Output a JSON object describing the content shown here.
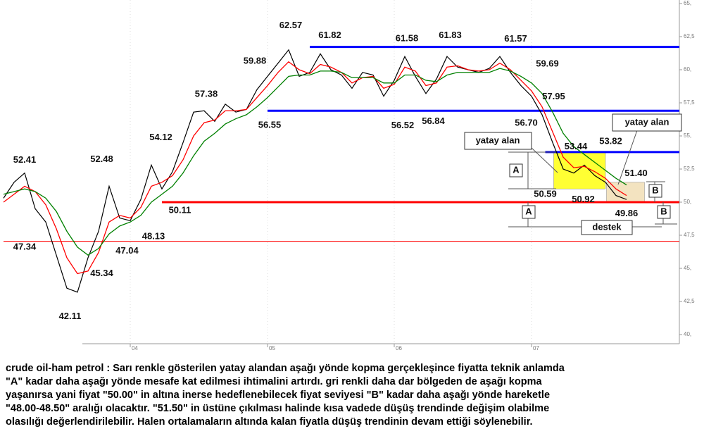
{
  "chart_data": {
    "type": "line",
    "categories": [
      null,
      null,
      null,
      null,
      null,
      null,
      null,
      null,
      null,
      null,
      null,
      null,
      "04",
      null,
      null,
      null,
      null,
      null,
      null,
      null,
      null,
      null,
      null,
      null,
      null,
      "05",
      null,
      null,
      null,
      null,
      null,
      null,
      null,
      null,
      null,
      null,
      null,
      "06",
      null,
      null,
      null,
      null,
      null,
      null,
      null,
      null,
      null,
      null,
      null,
      null,
      "07",
      null,
      null,
      null,
      null,
      null,
      null,
      null,
      null,
      null
    ],
    "series": [
      {
        "color": "#000000",
        "values": [
          50.3,
          51.5,
          52.2,
          49.5,
          48.5,
          46.0,
          43.5,
          43.2,
          45.8,
          47.8,
          51.2,
          48.8,
          48.6,
          50.2,
          52.8,
          51.0,
          52.3,
          54.5,
          56.8,
          56.9,
          56.1,
          57.4,
          56.8,
          57.0,
          58.5,
          59.5,
          60.5,
          61.5,
          59.5,
          59.8,
          61.2,
          60.0,
          59.6,
          58.6,
          59.8,
          59.6,
          58.0,
          59.2,
          61.0,
          59.5,
          58.2,
          59.3,
          61.0,
          60.2,
          60.0,
          59.8,
          60.1,
          61.0,
          59.8,
          58.8,
          58.0,
          56.6,
          54.5,
          52.5,
          52.2,
          52.8,
          52.0,
          51.5,
          50.5,
          50.2
        ]
      },
      {
        "color": "#ff0000",
        "values": [
          50.0,
          50.6,
          51.2,
          50.8,
          49.8,
          48.0,
          45.8,
          44.6,
          44.8,
          46.2,
          48.5,
          49.0,
          48.8,
          49.6,
          51.2,
          51.5,
          52.0,
          53.2,
          55.0,
          56.0,
          56.2,
          56.9,
          56.9,
          57.0,
          57.9,
          58.8,
          59.8,
          60.6,
          60.0,
          59.7,
          60.4,
          60.2,
          59.8,
          59.0,
          59.4,
          59.5,
          58.6,
          58.9,
          60.2,
          59.9,
          58.8,
          59.0,
          60.2,
          60.3,
          60.0,
          59.9,
          60.0,
          60.5,
          60.0,
          59.2,
          58.4,
          57.2,
          55.3,
          53.4,
          52.6,
          52.7,
          52.3,
          51.8,
          51.0,
          50.5
        ]
      },
      {
        "color": "#008000",
        "values": [
          50.6,
          50.8,
          51.0,
          50.8,
          50.3,
          49.3,
          47.8,
          46.6,
          46.0,
          46.5,
          47.6,
          48.2,
          48.5,
          49.0,
          50.0,
          50.6,
          51.2,
          52.2,
          53.5,
          54.6,
          55.2,
          55.9,
          56.3,
          56.6,
          57.2,
          57.9,
          58.7,
          59.5,
          59.6,
          59.6,
          59.9,
          59.9,
          59.8,
          59.4,
          59.4,
          59.4,
          59.0,
          59.0,
          59.6,
          59.6,
          59.2,
          59.1,
          59.6,
          59.8,
          59.8,
          59.8,
          59.8,
          60.1,
          59.9,
          59.5,
          59.0,
          58.2,
          56.8,
          55.2,
          54.2,
          53.6,
          53.0,
          52.4,
          51.8,
          51.3
        ]
      }
    ],
    "ylim": [
      40,
      65
    ],
    "yticks": [
      {
        "value": 65,
        "label": "65,"
      },
      {
        "value": 62.5,
        "label": "62,5"
      },
      {
        "value": 60,
        "label": "60,"
      },
      {
        "value": 57.5,
        "label": "57,5"
      },
      {
        "value": 55,
        "label": "55,"
      },
      {
        "value": 52.5,
        "label": "52,5"
      },
      {
        "value": 50,
        "label": "50,"
      },
      {
        "value": 47.5,
        "label": "47,5"
      },
      {
        "value": 45,
        "label": "45,"
      },
      {
        "value": 42.5,
        "label": "42,5"
      },
      {
        "value": 40,
        "label": "40,"
      }
    ],
    "levels": [
      {
        "value": 61.72,
        "color": "#0000ff",
        "from": 29,
        "style": "thick"
      },
      {
        "value": 56.9,
        "color": "#0000ff",
        "from": 25,
        "style": "thick"
      },
      {
        "value": 53.78,
        "color": "#0000ff",
        "from": 51.3,
        "style": "thick"
      },
      {
        "value": 50,
        "color": "#ff0000",
        "from": 15,
        "style": "thick"
      },
      {
        "value": 47.04,
        "color": "#ff0000",
        "from": 0,
        "style": "thin"
      }
    ],
    "zones": [
      {
        "from": 52.1,
        "to": 57,
        "low": 51.0,
        "high": 53.78,
        "color": "#ffff00"
      },
      {
        "from": 57.1,
        "to": 60.7,
        "low": 50.0,
        "high": 51.5,
        "color": "#f0dcb0"
      }
    ],
    "annotations": [
      {
        "label": "52.41",
        "value": 52.41,
        "x": 2.0,
        "position": "above"
      },
      {
        "label": "47.34",
        "value": 47.34,
        "x": 2.0,
        "position": "below"
      },
      {
        "label": "42.11",
        "value": 42.11,
        "x": 6.3,
        "position": "below"
      },
      {
        "label": "45.34",
        "value": 45.34,
        "x": 9.3,
        "position": "below"
      },
      {
        "label": "52.48",
        "value": 52.48,
        "x": 9.3,
        "position": "above"
      },
      {
        "label": "47.04",
        "value": 47.04,
        "x": 11.7,
        "position": "below"
      },
      {
        "label": "48.13",
        "value": 48.13,
        "x": 14.2,
        "position": "below"
      },
      {
        "label": "50.11",
        "value": 50.11,
        "x": 16.7,
        "position": "below"
      },
      {
        "label": "54.12",
        "value": 54.12,
        "x": 14.9,
        "position": "above"
      },
      {
        "label": "57.38",
        "value": 57.38,
        "x": 19.2,
        "position": "above"
      },
      {
        "label": "59.88",
        "value": 59.88,
        "x": 23.8,
        "position": "above"
      },
      {
        "label": "56.55",
        "value": 56.55,
        "x": 25.2,
        "position": "below"
      },
      {
        "label": "62.57",
        "value": 62.57,
        "x": 27.2,
        "position": "above"
      },
      {
        "label": "61.82",
        "value": 61.82,
        "x": 30.9,
        "position": "above"
      },
      {
        "label": "61.58",
        "value": 61.58,
        "x": 38.2,
        "position": "above"
      },
      {
        "label": "61.83",
        "value": 61.83,
        "x": 42.3,
        "position": "above"
      },
      {
        "label": "61.57",
        "value": 61.57,
        "x": 48.5,
        "position": "above"
      },
      {
        "label": "56.52",
        "value": 56.52,
        "x": 37.8,
        "position": "below"
      },
      {
        "label": "56.84",
        "value": 56.84,
        "x": 40.7,
        "position": "below"
      },
      {
        "label": "59.69",
        "value": 59.69,
        "x": 51.5,
        "position": "above"
      },
      {
        "label": "57.95",
        "value": 57.95,
        "x": 52.1,
        "position": "center"
      },
      {
        "label": "56.70",
        "value": 56.7,
        "x": 49.5,
        "position": "below"
      },
      {
        "label": "53.44",
        "value": 53.44,
        "x": 54.2,
        "position": "above"
      },
      {
        "label": "53.82",
        "value": 53.82,
        "x": 57.5,
        "position": "above"
      },
      {
        "label": "50.59",
        "value": 50.59,
        "x": 51.3,
        "position": "center"
      },
      {
        "label": "50.92",
        "value": 50.92,
        "x": 54.9,
        "position": "below"
      },
      {
        "label": "51.40",
        "value": 51.4,
        "x": 59.9,
        "position": "above"
      },
      {
        "label": "49.86",
        "value": 49.86,
        "x": 59.0,
        "position": "below"
      }
    ],
    "notes": [
      "yatay alan",
      "yatay alan",
      "A",
      "A",
      "B",
      "B",
      "destek"
    ]
  },
  "caption": [
    "crude oil-ham petrol : Sarı renkle gösterilen yatay alandan aşağı yönde kopma gerçekleşince fiyatta teknik anlamda",
    "\"A\" kadar daha aşağı yönde mesafe kat edilmesi ihtimalini artırdı. gri renkli daha dar bölgeden de aşağı kopma",
    "yaşanırsa yani fiyat \"50.00\" in altına inerse hedeflenebilecek fiyat seviyesi \"B\" kadar daha aşağı yönde hareketle",
    "\"48.00-48.50\" aralığı olacaktır. \"51.50\" in üstüne çıkılması halinde kısa vadede düşüş trendinde değişim olabilme",
    "olasılığı değerlendirilebilir. Halen ortalamaların altında kalan fiyatla düşüş trendinin devam ettiği söylenebilir."
  ]
}
